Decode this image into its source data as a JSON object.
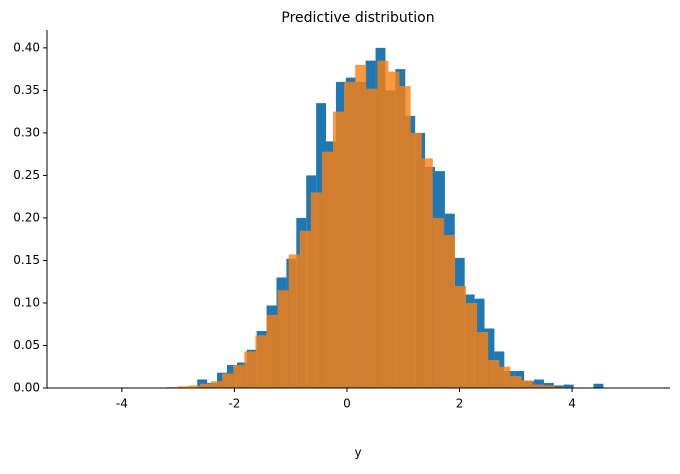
{
  "chart_data": {
    "type": "histogram",
    "title": "Predictive distribution",
    "x_label": "y",
    "series": [
      {
        "color": "#1f77b4",
        "opacity": 1,
        "bins": [
          -2.66,
          -2.484,
          -2.308,
          -2.132,
          -1.956,
          -1.78,
          -1.604,
          -1.428,
          -1.252,
          -1.076,
          -0.9,
          -0.724,
          -0.548,
          -0.372,
          -0.196,
          -0.02,
          0.156,
          0.332,
          0.508,
          0.684,
          0.86,
          1.036,
          1.212,
          1.388,
          1.564,
          1.74,
          1.916,
          2.092,
          2.268,
          2.444,
          2.62,
          2.796,
          2.972,
          3.148,
          3.324,
          3.5,
          3.676,
          3.852,
          4.028,
          4.204,
          4.38,
          4.556
        ],
        "values": [
          0.01,
          0.006,
          0.018,
          0.027,
          0.03,
          0.045,
          0.067,
          0.097,
          0.13,
          0.152,
          0.2,
          0.25,
          0.335,
          0.29,
          0.36,
          0.365,
          0.36,
          0.385,
          0.4,
          0.35,
          0.375,
          0.32,
          0.3,
          0.26,
          0.255,
          0.205,
          0.153,
          0.11,
          0.105,
          0.07,
          0.043,
          0.02,
          0.02,
          0.008,
          0.01,
          0.006,
          0.003,
          0.004,
          0.0,
          0.0,
          0.005
        ]
      },
      {
        "color": "#ff7f0e",
        "opacity": 0.8,
        "bins": [
          -3.4,
          -3.203,
          -3.006,
          -2.809,
          -2.612,
          -2.415,
          -2.218,
          -2.021,
          -1.824,
          -1.627,
          -1.43,
          -1.233,
          -1.036,
          -0.839,
          -0.642,
          -0.445,
          -0.248,
          -0.051,
          0.146,
          0.343,
          0.54,
          0.737,
          0.934,
          1.131,
          1.328,
          1.525,
          1.722,
          1.919,
          2.116,
          2.313,
          2.51,
          2.707,
          2.904,
          3.101,
          3.298,
          3.495,
          3.692,
          3.889,
          4.086
        ],
        "values": [
          0.0005,
          0.001,
          0.002,
          0.003,
          0.005,
          0.008,
          0.017,
          0.027,
          0.043,
          0.062,
          0.086,
          0.115,
          0.157,
          0.185,
          0.23,
          0.278,
          0.325,
          0.36,
          0.38,
          0.352,
          0.385,
          0.372,
          0.355,
          0.3,
          0.27,
          0.2,
          0.18,
          0.12,
          0.1,
          0.066,
          0.033,
          0.025,
          0.014,
          0.009,
          0.004,
          0.003,
          0.001,
          0.0008
        ]
      }
    ],
    "xlim": [
      -5.33,
      5.74
    ],
    "ylim": [
      0,
      0.421
    ],
    "xticks": [
      -4,
      -2,
      0,
      2,
      4
    ],
    "yticks": [
      {
        "value": 0,
        "label": "0.00"
      },
      {
        "value": 0.05,
        "label": "0.05"
      },
      {
        "value": 0.1,
        "label": "0.10"
      },
      {
        "value": 0.15,
        "label": "0.15"
      },
      {
        "value": 0.2,
        "label": "0.20"
      },
      {
        "value": 0.25,
        "label": "0.25"
      },
      {
        "value": 0.3,
        "label": "0.30"
      },
      {
        "value": 0.35,
        "label": "0.35"
      },
      {
        "value": 0.4,
        "label": "0.40"
      }
    ]
  }
}
